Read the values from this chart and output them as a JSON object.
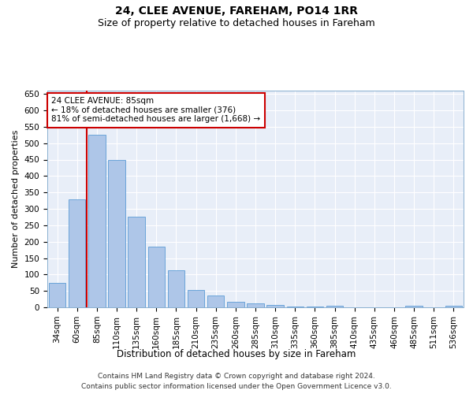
{
  "title1": "24, CLEE AVENUE, FAREHAM, PO14 1RR",
  "title2": "Size of property relative to detached houses in Fareham",
  "xlabel": "Distribution of detached houses by size in Fareham",
  "ylabel": "Number of detached properties",
  "footnote1": "Contains HM Land Registry data © Crown copyright and database right 2024.",
  "footnote2": "Contains public sector information licensed under the Open Government Licence v3.0.",
  "categories": [
    "34sqm",
    "60sqm",
    "85sqm",
    "110sqm",
    "135sqm",
    "160sqm",
    "185sqm",
    "210sqm",
    "235sqm",
    "260sqm",
    "285sqm",
    "310sqm",
    "335sqm",
    "360sqm",
    "385sqm",
    "410sqm",
    "435sqm",
    "460sqm",
    "485sqm",
    "511sqm",
    "536sqm"
  ],
  "values": [
    75,
    330,
    525,
    450,
    275,
    185,
    113,
    52,
    36,
    17,
    13,
    8,
    3,
    3,
    4,
    1,
    1,
    1,
    5,
    1,
    5
  ],
  "bar_color": "#aec6e8",
  "bar_edge_color": "#5b9bd5",
  "highlight_bar_index": 2,
  "highlight_line_color": "#cc0000",
  "annotation_text": "24 CLEE AVENUE: 85sqm\n← 18% of detached houses are smaller (376)\n81% of semi-detached houses are larger (1,668) →",
  "annotation_box_color": "#ffffff",
  "annotation_box_edge_color": "#cc0000",
  "ylim": [
    0,
    660
  ],
  "yticks": [
    0,
    50,
    100,
    150,
    200,
    250,
    300,
    350,
    400,
    450,
    500,
    550,
    600,
    650
  ],
  "background_color": "#e8eef8",
  "grid_color": "#ffffff",
  "title1_fontsize": 10,
  "title2_fontsize": 9,
  "xlabel_fontsize": 8.5,
  "ylabel_fontsize": 8,
  "tick_fontsize": 7.5,
  "annotation_fontsize": 7.5,
  "footnote_fontsize": 6.5
}
